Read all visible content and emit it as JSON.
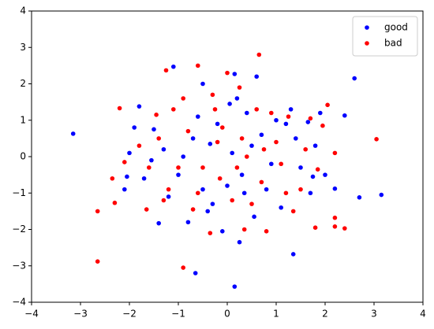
{
  "chart_data": {
    "type": "scatter",
    "xlim": [
      -4,
      4
    ],
    "ylim": [
      -4,
      4
    ],
    "xticks": [
      {
        "value": -4,
        "label": "−4"
      },
      {
        "value": -3,
        "label": "−3"
      },
      {
        "value": -2,
        "label": "−2"
      },
      {
        "value": -1,
        "label": "−1"
      },
      0,
      1,
      2,
      3,
      4
    ],
    "yticks": [
      {
        "value": -4,
        "label": "−4"
      },
      {
        "value": -3,
        "label": "−3"
      },
      {
        "value": -2,
        "label": "−2"
      },
      {
        "value": -1,
        "label": "−1"
      },
      0,
      1,
      2,
      3,
      4
    ],
    "legend": "upper right",
    "series": [
      {
        "name": "good",
        "color": "#0000ff",
        "x": [
          -3.15,
          2.6,
          3.15,
          0.15,
          -0.65,
          1.35,
          -1.1,
          0.6,
          2.4,
          2.2,
          2.7,
          -1.4,
          -1.8,
          -2.05,
          -1.9,
          -1.5,
          -0.5,
          0.15,
          0.2,
          1.0,
          1.2,
          1.5,
          1.8,
          1.7,
          -0.3,
          -0.1,
          -0.4,
          0.3,
          0.5,
          -0.7,
          -1.0,
          -1.3,
          0.8,
          0.0,
          -0.2,
          0.4,
          1.1,
          1.9,
          -1.7,
          -2.1,
          0.25,
          -0.5,
          0.7,
          0.1,
          -0.8,
          1.4,
          0.9,
          -0.6,
          -1.2,
          2.0,
          0.55,
          -0.35,
          1.65,
          -1.55,
          0.05,
          1.3,
          -0.9,
          0.35,
          1.75,
          -2.0
        ],
        "y": [
          0.63,
          2.15,
          -1.05,
          -3.57,
          -3.2,
          -2.68,
          2.47,
          2.2,
          1.13,
          -0.88,
          -1.12,
          -1.83,
          1.38,
          -0.55,
          0.8,
          0.75,
          2.0,
          2.27,
          1.6,
          1.0,
          0.9,
          -0.3,
          0.3,
          -1.0,
          -1.3,
          -2.05,
          -1.5,
          -0.5,
          0.3,
          0.5,
          -0.5,
          0.2,
          -0.9,
          -0.8,
          0.9,
          1.2,
          -1.4,
          1.2,
          -0.6,
          -0.9,
          -2.35,
          -0.9,
          0.6,
          0.1,
          -1.8,
          0.5,
          -0.2,
          1.1,
          -1.1,
          -0.5,
          -1.65,
          0.35,
          0.95,
          -0.1,
          1.45,
          1.3,
          0.0,
          -1.0,
          -0.55,
          0.1
        ]
      },
      {
        "name": "bad",
        "color": "#ff0000",
        "x": [
          0.65,
          3.05,
          -2.65,
          -2.65,
          -0.9,
          2.4,
          2.2,
          2.2,
          -1.25,
          -0.6,
          2.05,
          -2.3,
          -2.35,
          -2.2,
          -1.65,
          0.0,
          -0.3,
          0.25,
          1.25,
          1.7,
          1.95,
          2.2,
          1.8,
          0.35,
          0.8,
          -0.35,
          -0.7,
          -1.2,
          -1.4,
          -1.1,
          -0.8,
          -0.2,
          0.4,
          0.7,
          1.0,
          1.5,
          -0.5,
          0.1,
          -1.0,
          0.6,
          -0.1,
          1.1,
          -1.8,
          -2.1,
          0.9,
          -0.6,
          0.2,
          1.35,
          -1.45,
          0.5,
          -0.25,
          1.6,
          -0.9,
          0.3,
          -1.6,
          1.2,
          -0.15,
          0.75,
          -1.3,
          1.85
        ],
        "y": [
          2.8,
          0.48,
          -2.88,
          -1.5,
          -3.05,
          -1.97,
          -1.92,
          -1.68,
          2.37,
          2.5,
          1.42,
          -1.27,
          -0.6,
          1.33,
          -1.45,
          2.3,
          1.7,
          1.9,
          1.1,
          1.05,
          0.85,
          0.1,
          -1.95,
          -2.0,
          -2.05,
          -2.1,
          -1.45,
          -0.9,
          0.5,
          1.3,
          0.7,
          0.4,
          0.0,
          -0.7,
          0.4,
          -0.9,
          -0.3,
          -1.2,
          -0.3,
          1.3,
          0.8,
          -0.2,
          0.3,
          -0.15,
          1.2,
          -1.0,
          -0.3,
          -1.5,
          1.15,
          -1.3,
          1.3,
          0.2,
          1.6,
          0.5,
          -0.3,
          -1.0,
          -0.6,
          0.2,
          -1.2,
          -0.35
        ]
      }
    ]
  }
}
